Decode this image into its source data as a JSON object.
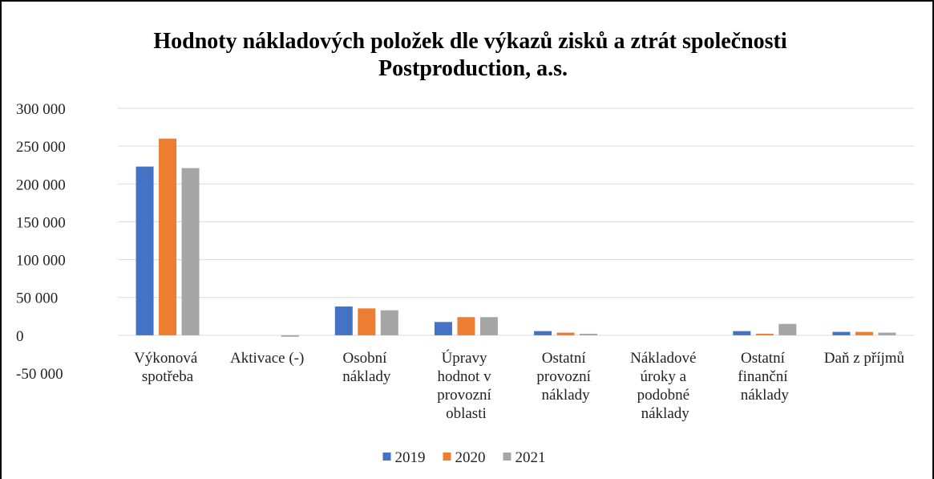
{
  "chart_data": {
    "type": "bar",
    "title": "Hodnoty nákladových položek dle výkazů zisků a ztrát společnosti Postproduction, a.s.",
    "categories": [
      "Výkonová spotřeba",
      "Aktivace (-)",
      "Osobní náklady",
      "Úpravy hodnot v provozní oblasti",
      "Ostatní provozní náklady",
      "Nákladové úroky a podobné náklady",
      "Ostatní finanční náklady",
      "Daň z příjmů"
    ],
    "series": [
      {
        "name": "2019",
        "color": "#4472c4",
        "values": [
          223000,
          0,
          38000,
          17500,
          5500,
          0,
          5500,
          4500
        ]
      },
      {
        "name": "2020",
        "color": "#ed7d31",
        "values": [
          260000,
          0,
          35500,
          24000,
          3500,
          0,
          2000,
          4500
        ]
      },
      {
        "name": "2021",
        "color": "#a5a5a5",
        "values": [
          221000,
          -2000,
          33000,
          24000,
          2000,
          0,
          15000,
          3500
        ]
      }
    ],
    "ylim": [
      -50000,
      300000
    ],
    "yticks": [
      {
        "value": -50000,
        "label": "-50 000"
      },
      0,
      {
        "value": 50000,
        "label": "50 000"
      },
      {
        "value": 100000,
        "label": "100 000"
      },
      {
        "value": 150000,
        "label": "150 000"
      },
      {
        "value": 200000,
        "label": "200 000"
      },
      {
        "value": 250000,
        "label": "250 000"
      },
      {
        "value": 300000,
        "label": "300 000"
      }
    ],
    "grid": true,
    "legend": "bottom"
  }
}
